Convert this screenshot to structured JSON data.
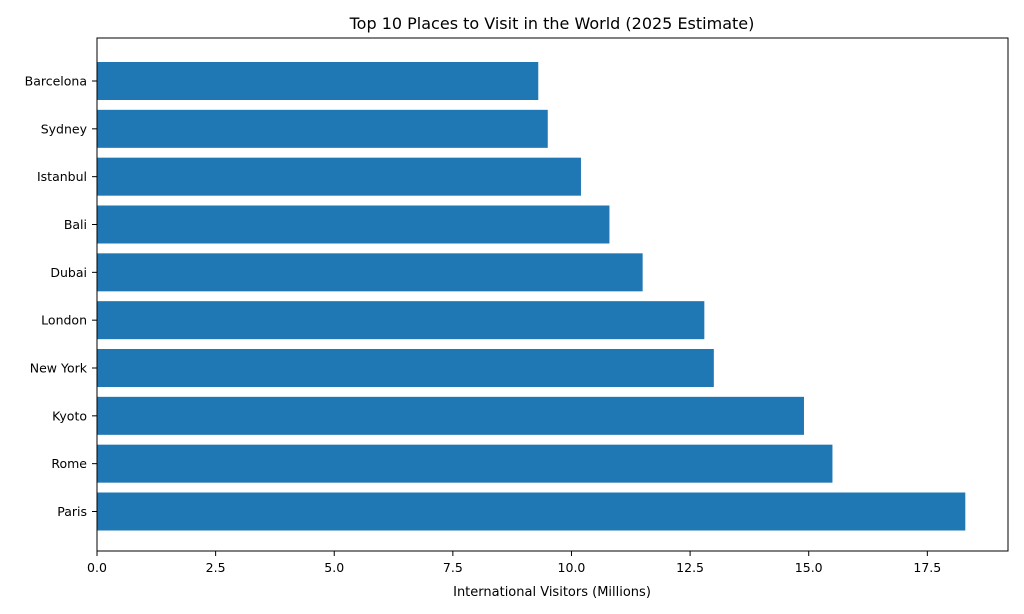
{
  "chart_data": {
    "type": "bar",
    "orientation": "horizontal",
    "title": "Top 10 Places to Visit in the World (2025 Estimate)",
    "xlabel": "International Visitors (Millions)",
    "ylabel": "",
    "categories": [
      "Paris",
      "Rome",
      "Kyoto",
      "New York",
      "London",
      "Dubai",
      "Bali",
      "Istanbul",
      "Sydney",
      "Barcelona"
    ],
    "values": [
      18.3,
      15.5,
      14.9,
      13.0,
      12.8,
      11.5,
      10.8,
      10.2,
      9.5,
      9.3
    ],
    "xlim": [
      0,
      19.2
    ],
    "xticks": [
      0.0,
      2.5,
      5.0,
      7.5,
      10.0,
      12.5,
      15.0,
      17.5
    ],
    "xtick_labels": [
      "0.0",
      "2.5",
      "5.0",
      "7.5",
      "10.0",
      "12.5",
      "15.0",
      "17.5"
    ],
    "bar_color": "#1f77b4",
    "grid": false,
    "legend": "none"
  }
}
